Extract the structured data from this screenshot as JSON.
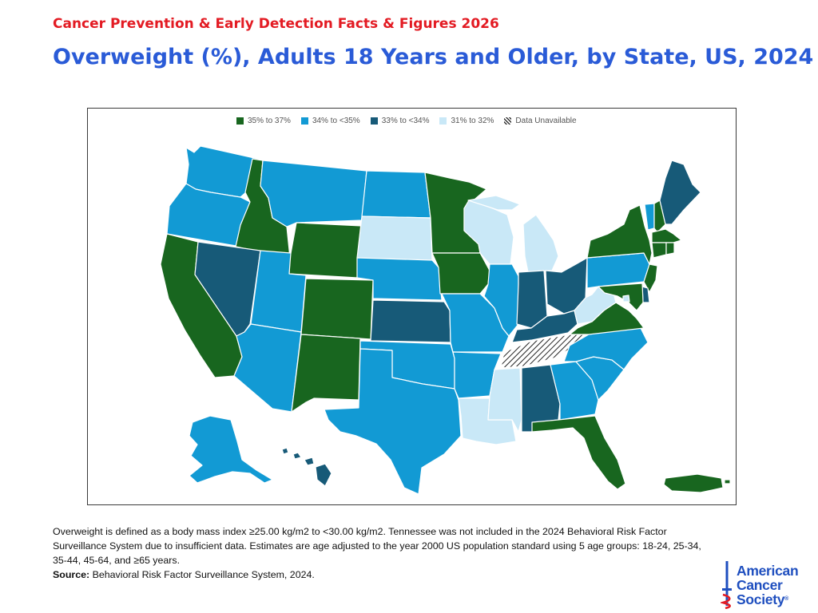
{
  "header": {
    "supertitle": "Cancer Prevention & Early Detection Facts & Figures 2026",
    "title": "Overweight (%), Adults 18 Years and Older, by State, US, 2024"
  },
  "colors": {
    "cat1": "#18661f",
    "cat2": "#129ad4",
    "cat3": "#175a78",
    "cat4": "#c9e8f7",
    "na": "hatch"
  },
  "legend": [
    {
      "key": "cat1",
      "label": "35% to 37%"
    },
    {
      "key": "cat2",
      "label": "34% to <35%"
    },
    {
      "key": "cat3",
      "label": "33% to <34%"
    },
    {
      "key": "cat4",
      "label": "31% to 32%"
    },
    {
      "key": "na",
      "label": "Data Unavailable"
    }
  ],
  "states": {
    "WA": "cat2",
    "OR": "cat2",
    "CA": "cat1",
    "ID": "cat1",
    "NV": "cat3",
    "MT": "cat2",
    "WY": "cat1",
    "UT": "cat2",
    "AZ": "cat2",
    "CO": "cat1",
    "NM": "cat1",
    "ND": "cat2",
    "SD": "cat4",
    "NE": "cat2",
    "KS": "cat3",
    "OK": "cat2",
    "TX": "cat2",
    "MN": "cat1",
    "IA": "cat1",
    "MO": "cat2",
    "AR": "cat2",
    "LA": "cat4",
    "WI": "cat4",
    "IL": "cat2",
    "MS": "cat4",
    "MI": "cat4",
    "IN": "cat3",
    "OH": "cat3",
    "KY": "cat3",
    "TN": "na",
    "AL": "cat3",
    "GA": "cat2",
    "FL": "cat1",
    "SC": "cat2",
    "NC": "cat2",
    "VA": "cat1",
    "WV": "cat4",
    "PA": "cat2",
    "NY": "cat1",
    "VT": "cat2",
    "NH": "cat1",
    "ME": "cat3",
    "MA": "cat1",
    "CT": "cat1",
    "RI": "cat1",
    "NJ": "cat1",
    "DE": "cat3",
    "MD": "cat1",
    "DC": "cat4",
    "AK": "cat2",
    "HI": "cat3",
    "PR": "cat1"
  },
  "footnote": {
    "text": "Overweight is defined as a body mass index ≥25.00 kg/m2 to <30.00 kg/m2. Tennessee was not included in the 2024 Behavioral Risk Factor Surveillance System due to insufficient data. Estimates are age adjusted to the year 2000 US population standard using 5 age groups: 18-24, 25-34, 35-44, 45-64, and ≥65 years.",
    "source_label": "Source:",
    "source_text": "Behavioral Risk Factor Surveillance System, 2024."
  },
  "logo": {
    "line1": "American",
    "line2": "Cancer",
    "line3": "Society",
    "reg": "®"
  }
}
